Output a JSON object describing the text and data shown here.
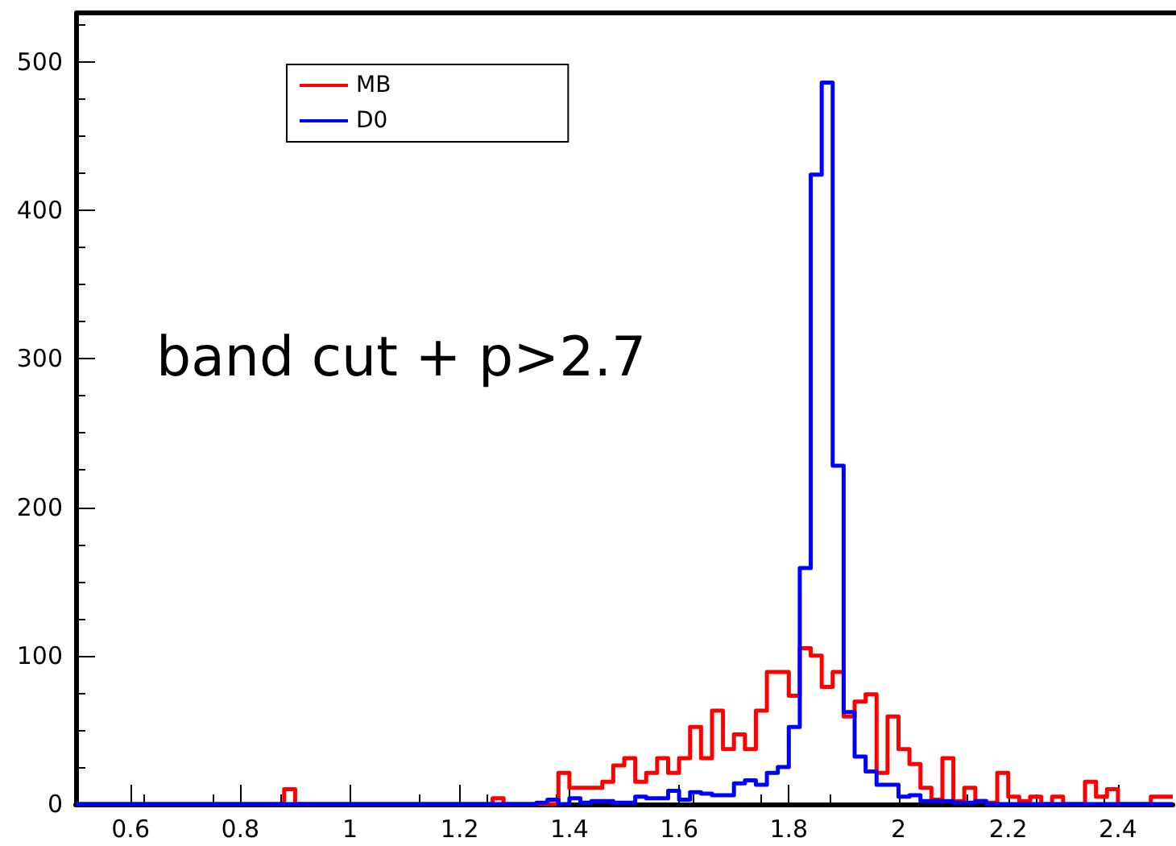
{
  "chart_data": {
    "type": "histogram",
    "bins": [
      0.5,
      0.52,
      0.54,
      0.56,
      0.58,
      0.6,
      0.62,
      0.64,
      0.66,
      0.68,
      0.7,
      0.72,
      0.74,
      0.76,
      0.78,
      0.8,
      0.82,
      0.84,
      0.86,
      0.88,
      0.9,
      0.92,
      0.94,
      0.96,
      0.98,
      1,
      1.02,
      1.04,
      1.06,
      1.08,
      1.1,
      1.12,
      1.14,
      1.16,
      1.18,
      1.2,
      1.22,
      1.24,
      1.26,
      1.28,
      1.3,
      1.32,
      1.34,
      1.36,
      1.38,
      1.4,
      1.42,
      1.44,
      1.46,
      1.48,
      1.5,
      1.52,
      1.54,
      1.56,
      1.58,
      1.6,
      1.62,
      1.64,
      1.66,
      1.68,
      1.7,
      1.72,
      1.74,
      1.76,
      1.78,
      1.8,
      1.82,
      1.84,
      1.86,
      1.88,
      1.9,
      1.92,
      1.94,
      1.96,
      1.98,
      2,
      2.02,
      2.04,
      2.06,
      2.08,
      2.1,
      2.12,
      2.14,
      2.16,
      2.18,
      2.2,
      2.22,
      2.24,
      2.26,
      2.28,
      2.3,
      2.32,
      2.34,
      2.36,
      2.38,
      2.4,
      2.42,
      2.44,
      2.46,
      2.48,
      2.5
    ],
    "series": [
      {
        "name": "MB",
        "color": "#ff0000",
        "values": [
          0,
          0,
          0,
          0,
          0,
          0,
          0,
          0,
          0,
          0,
          0,
          0,
          0,
          0,
          0,
          0,
          0,
          0,
          0,
          10,
          0,
          0,
          0,
          0,
          0,
          0,
          0,
          0,
          0,
          0,
          0,
          0,
          0,
          0,
          0,
          0,
          0,
          0,
          4,
          0,
          0,
          0,
          0,
          0,
          21,
          11,
          11,
          11,
          15,
          26,
          31,
          15,
          21,
          31,
          21,
          31,
          52,
          31,
          63,
          37,
          47,
          37,
          63,
          89,
          89,
          73,
          105,
          100,
          79,
          89,
          59,
          69,
          74,
          21,
          59,
          37,
          27,
          11,
          3,
          31,
          2,
          11,
          2,
          1,
          21,
          5,
          2,
          5,
          0,
          5,
          0,
          0,
          15,
          5,
          10,
          0,
          0,
          0,
          5,
          5
        ]
      },
      {
        "name": "D0",
        "color": "#0000ff",
        "values": [
          0,
          0,
          0,
          0,
          0,
          0,
          0,
          0,
          0,
          0,
          0,
          0,
          0,
          0,
          0,
          0,
          0,
          0,
          0,
          0,
          0,
          0,
          0,
          0,
          0,
          0,
          0,
          0,
          0,
          0,
          0,
          0,
          0,
          0,
          0,
          0,
          0,
          0,
          0,
          0,
          0,
          0,
          1,
          3,
          0,
          4,
          1,
          2,
          2,
          1,
          1,
          5,
          4,
          4,
          9,
          3,
          8,
          7,
          6,
          6,
          14,
          16,
          13,
          21,
          25,
          52,
          159,
          424,
          486,
          228,
          62,
          32,
          22,
          13,
          13,
          5,
          6,
          2,
          2,
          2,
          1,
          1,
          2,
          0,
          0,
          0,
          0,
          0,
          0,
          0,
          0,
          0,
          0,
          0,
          0,
          0,
          0,
          0,
          0,
          0
        ]
      }
    ],
    "xlim": [
      0.5,
      2.5
    ],
    "xticks": [
      0.6,
      0.8,
      1,
      1.2,
      1.4,
      1.6,
      1.8,
      2,
      2.2,
      2.4
    ],
    "ylim": [
      0,
      533
    ],
    "yticks": [
      0,
      100,
      200,
      300,
      400,
      500
    ],
    "legend": "top left",
    "grid": false,
    "annotations": [
      "band cut + p>2.7"
    ]
  }
}
